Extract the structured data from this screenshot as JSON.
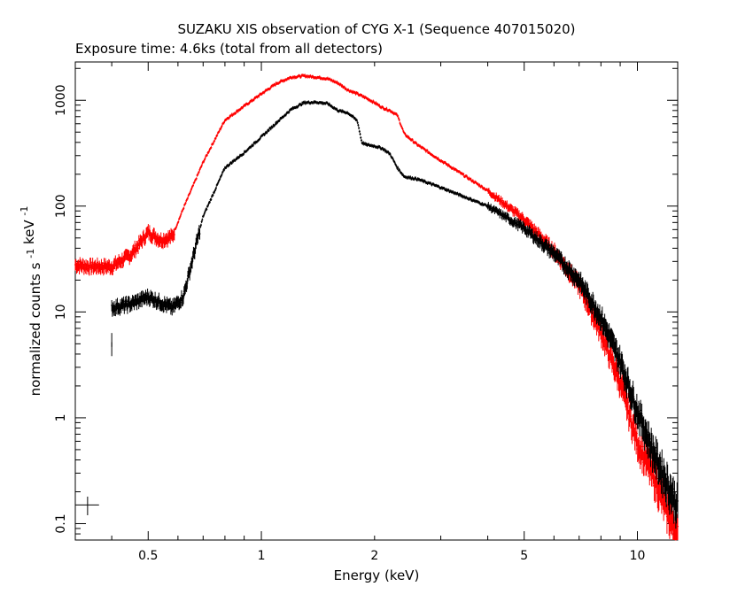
{
  "chart_data": {
    "type": "scatter",
    "title": "SUZAKU XIS observation of CYG X-1 (Sequence 407015020)",
    "subtitle": "Exposure time: 4.6ks (total from all detectors)",
    "xlabel": "Energy (keV)",
    "ylabel": "normalized counts s",
    "ylabel_unit": "keV",
    "ylabel_sup1": "-1",
    "ylabel_sup2": "-1",
    "xscale": "log",
    "yscale": "log",
    "xlim": [
      0.32,
      12.8
    ],
    "ylim": [
      0.07,
      2300
    ],
    "xticks": [
      {
        "value": 0.5,
        "label": "0.5"
      },
      {
        "value": 1,
        "label": "1"
      },
      {
        "value": 2,
        "label": "2"
      },
      {
        "value": 5,
        "label": "5"
      },
      {
        "value": 10,
        "label": "10"
      }
    ],
    "yticks": [
      {
        "value": 0.1,
        "label": "0.1"
      },
      {
        "value": 1,
        "label": "1"
      },
      {
        "value": 10,
        "label": "10"
      },
      {
        "value": 100,
        "label": "100"
      },
      {
        "value": 1000,
        "label": "1000"
      }
    ],
    "grid": false,
    "series": [
      {
        "color": "#ff0000",
        "points": [
          [
            0.32,
            28
          ],
          [
            0.35,
            27
          ],
          [
            0.4,
            27
          ],
          [
            0.45,
            35
          ],
          [
            0.5,
            57
          ],
          [
            0.54,
            48
          ],
          [
            0.58,
            52
          ],
          [
            0.62,
            95
          ],
          [
            0.7,
            260
          ],
          [
            0.8,
            650
          ],
          [
            0.9,
            880
          ],
          [
            1.0,
            1150
          ],
          [
            1.1,
            1450
          ],
          [
            1.2,
            1650
          ],
          [
            1.3,
            1700
          ],
          [
            1.4,
            1650
          ],
          [
            1.5,
            1600
          ],
          [
            1.6,
            1450
          ],
          [
            1.7,
            1250
          ],
          [
            1.8,
            1150
          ],
          [
            1.9,
            1050
          ],
          [
            2.0,
            950
          ],
          [
            2.1,
            850
          ],
          [
            2.2,
            800
          ],
          [
            2.3,
            720
          ],
          [
            2.4,
            480
          ],
          [
            2.6,
            380
          ],
          [
            3.0,
            270
          ],
          [
            4.0,
            140
          ],
          [
            5.0,
            75
          ],
          [
            6.0,
            38
          ],
          [
            7.0,
            18
          ],
          [
            8.0,
            6.5
          ],
          [
            9.0,
            2.2
          ],
          [
            10.0,
            0.6
          ],
          [
            11.0,
            0.3
          ],
          [
            12.0,
            0.14
          ],
          [
            12.8,
            0.08
          ]
        ]
      },
      {
        "color": "#000000",
        "points": [
          [
            0.4,
            11
          ],
          [
            0.45,
            12
          ],
          [
            0.5,
            14
          ],
          [
            0.55,
            12
          ],
          [
            0.58,
            11
          ],
          [
            0.62,
            14
          ],
          [
            0.7,
            80
          ],
          [
            0.8,
            230
          ],
          [
            0.9,
            320
          ],
          [
            1.0,
            450
          ],
          [
            1.1,
            620
          ],
          [
            1.2,
            820
          ],
          [
            1.3,
            950
          ],
          [
            1.4,
            960
          ],
          [
            1.5,
            930
          ],
          [
            1.6,
            800
          ],
          [
            1.7,
            760
          ],
          [
            1.8,
            640
          ],
          [
            1.85,
            400
          ],
          [
            1.9,
            380
          ],
          [
            2.0,
            370
          ],
          [
            2.1,
            350
          ],
          [
            2.2,
            310
          ],
          [
            2.3,
            230
          ],
          [
            2.4,
            190
          ],
          [
            2.6,
            180
          ],
          [
            3.0,
            150
          ],
          [
            4.0,
            100
          ],
          [
            5.0,
            62
          ],
          [
            6.0,
            36
          ],
          [
            7.0,
            20
          ],
          [
            8.0,
            9
          ],
          [
            9.0,
            3.5
          ],
          [
            10.0,
            1.2
          ],
          [
            11.0,
            0.5
          ],
          [
            12.0,
            0.25
          ],
          [
            12.8,
            0.15
          ]
        ]
      }
    ],
    "extra_black_points": [
      [
        0.4,
        4.5
      ],
      [
        0.4,
        5.5
      ]
    ],
    "legend_marker": {
      "x": 0.345,
      "y": 0.15,
      "x_err": [
        0.32,
        0.37
      ],
      "y_err": [
        0.12,
        0.18
      ]
    }
  }
}
